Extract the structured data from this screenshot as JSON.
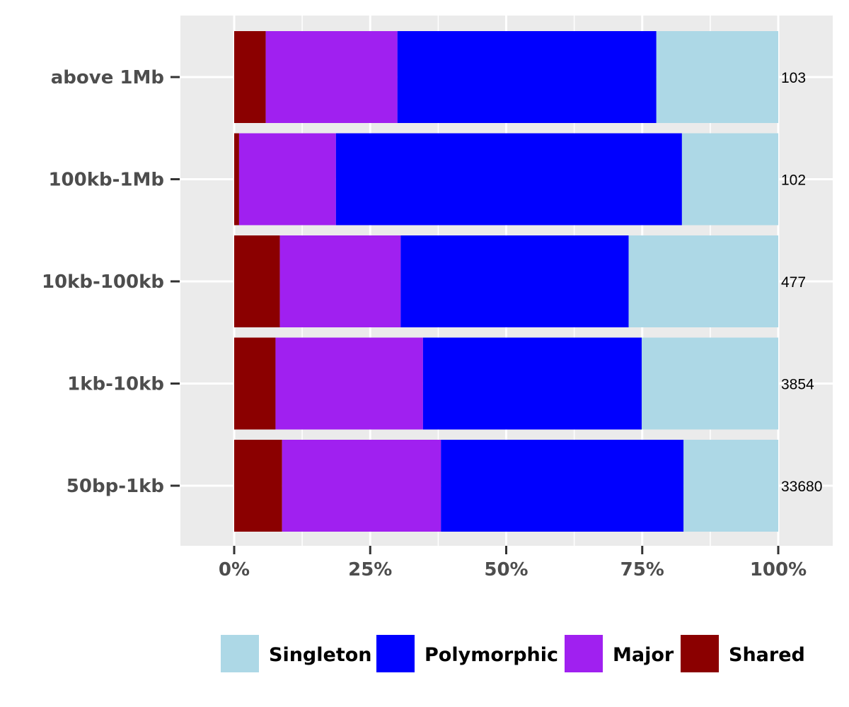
{
  "chart_data": {
    "type": "bar",
    "orientation": "horizontal",
    "stacking": "percent",
    "categories": [
      "above 1Mb",
      "100kb-1Mb",
      "10kb-100kb",
      "1kb-10kb",
      "50bp-1kb"
    ],
    "counts": [
      "103",
      "102",
      "477",
      "3854",
      "33680"
    ],
    "series": [
      {
        "name": "Shared",
        "color": "#8b0000",
        "values": [
          5.8,
          0.9,
          8.4,
          7.6,
          8.8
        ]
      },
      {
        "name": "Major",
        "color": "#a020f0",
        "values": [
          24.2,
          17.8,
          22.2,
          27.1,
          29.2
        ]
      },
      {
        "name": "Polymorphic",
        "color": "#0000ff",
        "values": [
          47.6,
          63.6,
          41.9,
          40.2,
          44.6
        ]
      },
      {
        "name": "Singleton",
        "color": "#add8e6",
        "values": [
          22.4,
          17.7,
          27.5,
          25.1,
          17.4
        ]
      }
    ],
    "xticks": [
      "0%",
      "25%",
      "50%",
      "75%",
      "100%"
    ],
    "xlim": [
      -10,
      104
    ],
    "grid": true,
    "legend_position": "bottom",
    "legend_order": [
      "Singleton",
      "Polymorphic",
      "Major",
      "Shared"
    ],
    "panel_background": "#ebebeb",
    "title": "",
    "xlabel": "",
    "ylabel": ""
  }
}
